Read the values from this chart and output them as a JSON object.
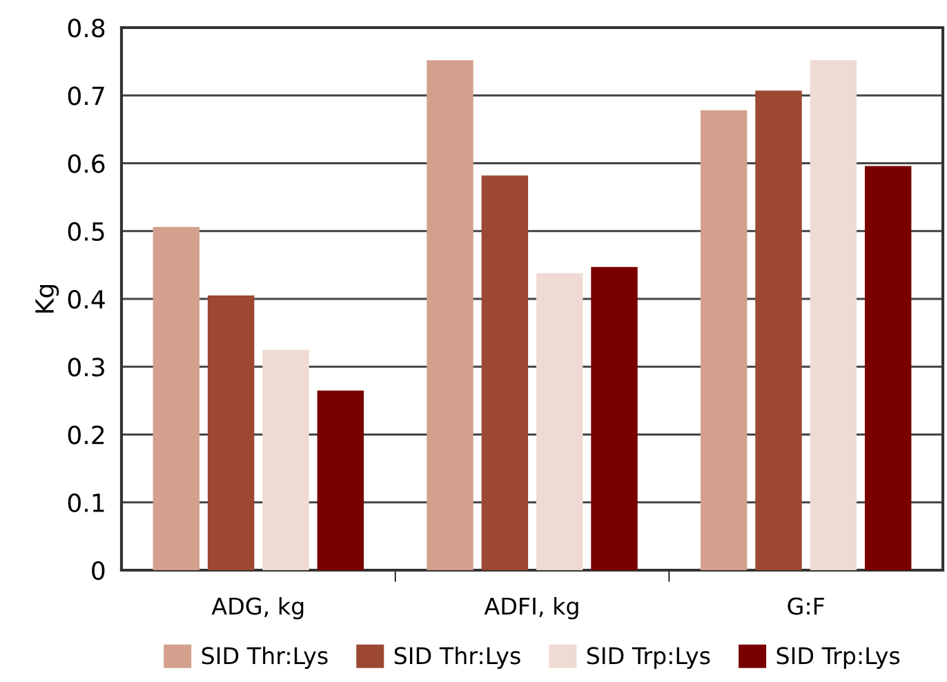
{
  "chart_data": {
    "type": "bar",
    "ylabel": "Kg",
    "categories": [
      "ADG, kg",
      "ADFI, kg",
      "G:F"
    ],
    "series": [
      {
        "name": "SID Thr:Lys",
        "color": "#d3a08d",
        "values": [
          0.506,
          0.752,
          0.678
        ]
      },
      {
        "name": "SID Thr:Lys",
        "color": "#9c4832",
        "values": [
          0.405,
          0.582,
          0.707
        ]
      },
      {
        "name": "SID Trp:Lys",
        "color": "#efdbd3",
        "values": [
          0.325,
          0.438,
          0.752
        ]
      },
      {
        "name": "SID Trp:Lys",
        "color": "#7a0000",
        "values": [
          0.265,
          0.447,
          0.596
        ]
      }
    ],
    "ylim": [
      0,
      0.8
    ],
    "yticks": [
      0,
      0.1,
      0.2,
      0.3,
      0.4,
      0.5,
      0.6,
      0.7,
      0.8
    ],
    "grid": "y",
    "legend": "bottom"
  }
}
